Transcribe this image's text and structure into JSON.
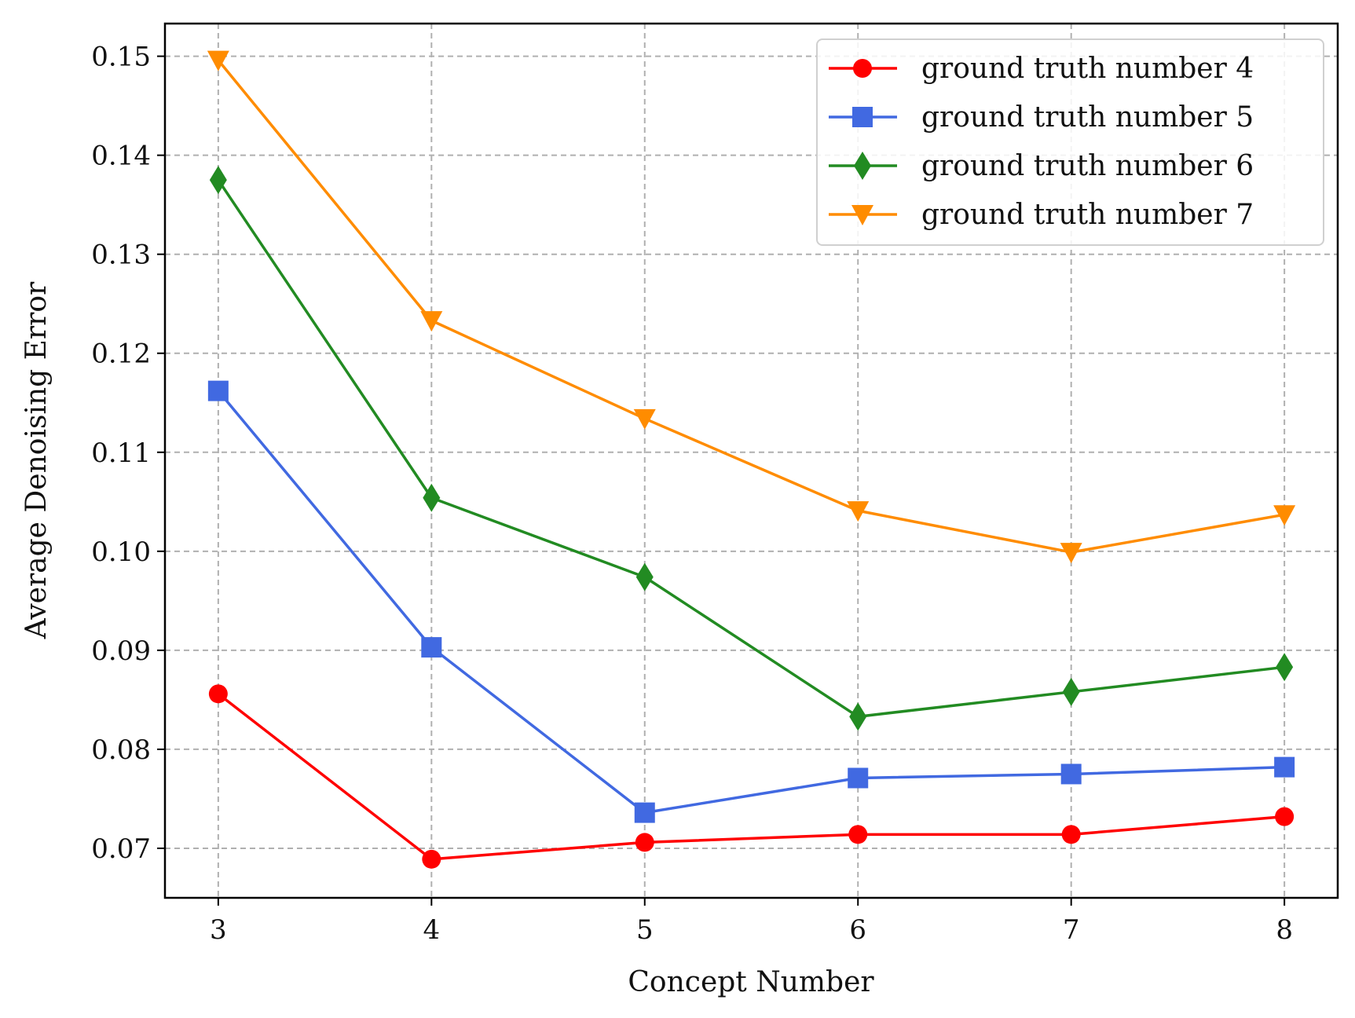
{
  "chart_data": {
    "type": "line",
    "title": "",
    "xlabel": "Concept Number",
    "ylabel": "Average Denoising Error",
    "x": [
      3,
      4,
      5,
      6,
      7,
      8
    ],
    "x_tick_labels": [
      "3",
      "4",
      "5",
      "6",
      "7",
      "8"
    ],
    "y_ticks": [
      0.07,
      0.08,
      0.09,
      0.1,
      0.11,
      0.12,
      0.13,
      0.14,
      0.15
    ],
    "y_tick_labels": [
      "0.07",
      "0.08",
      "0.09",
      "0.10",
      "0.11",
      "0.12",
      "0.13",
      "0.14",
      "0.15"
    ],
    "xlim": [
      2.75,
      8.25
    ],
    "ylim": [
      0.065,
      0.1533
    ],
    "grid": true,
    "legend_position": "top-right",
    "series": [
      {
        "name": "ground truth number 4",
        "color": "#ff0000",
        "marker": "circle",
        "values": [
          0.0856,
          0.0689,
          0.0706,
          0.0714,
          0.0714,
          0.0732
        ]
      },
      {
        "name": "ground truth number 5",
        "color": "#4169e1",
        "marker": "square",
        "values": [
          0.1162,
          0.0903,
          0.0736,
          0.0771,
          0.0775,
          0.0782
        ]
      },
      {
        "name": "ground truth number 6",
        "color": "#228b22",
        "marker": "diamond",
        "values": [
          0.1375,
          0.1054,
          0.0974,
          0.0833,
          0.0858,
          0.0883
        ]
      },
      {
        "name": "ground truth number 7",
        "color": "#ff8c00",
        "marker": "triangle-down",
        "values": [
          0.1496,
          0.1233,
          0.1134,
          0.1041,
          0.0999,
          0.1037
        ]
      }
    ]
  }
}
